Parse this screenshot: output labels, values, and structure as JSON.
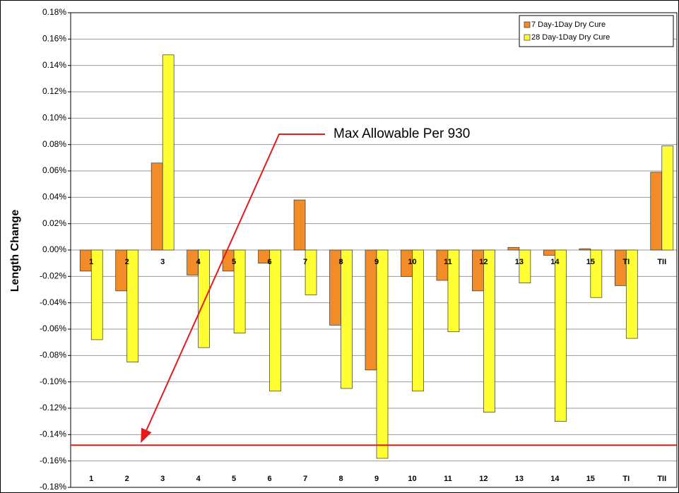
{
  "chart_data": {
    "type": "bar",
    "y_label": "Length Change",
    "categories": [
      "1",
      "2",
      "3",
      "4",
      "5",
      "6",
      "7",
      "8",
      "9",
      "10",
      "11",
      "12",
      "13",
      "14",
      "15",
      "TI",
      "TII"
    ],
    "series": [
      {
        "name": "7 Day-1Day Dry Cure",
        "color": "#f28c28",
        "values": [
          -0.016,
          -0.031,
          0.066,
          -0.019,
          -0.016,
          -0.01,
          0.038,
          -0.057,
          -0.091,
          -0.02,
          -0.023,
          -0.031,
          0.002,
          -0.004,
          0.001,
          -0.027,
          0.059
        ]
      },
      {
        "name": "28 Day-1Day Dry Cure",
        "color": "#ffff33",
        "values": [
          -0.068,
          -0.085,
          0.148,
          -0.074,
          -0.063,
          -0.107,
          -0.034,
          -0.105,
          -0.158,
          -0.107,
          -0.062,
          -0.123,
          -0.025,
          -0.13,
          -0.036,
          -0.067,
          0.079
        ]
      }
    ],
    "ylim": [
      -0.18,
      0.18
    ],
    "yticks": [
      {
        "value": -0.18,
        "label": "-0.18%"
      },
      {
        "value": -0.16,
        "label": "-0.16%"
      },
      {
        "value": -0.14,
        "label": "-0.14%"
      },
      {
        "value": -0.12,
        "label": "-0.12%"
      },
      {
        "value": -0.1,
        "label": "-0.10%"
      },
      {
        "value": -0.08,
        "label": "-0.08%"
      },
      {
        "value": -0.06,
        "label": "-0.06%"
      },
      {
        "value": -0.04,
        "label": "-0.04%"
      },
      {
        "value": -0.02,
        "label": "-0.02%"
      },
      {
        "value": 0,
        "label": "0.00%"
      },
      {
        "value": 0.02,
        "label": "0.02%"
      },
      {
        "value": 0.04,
        "label": "0.04%"
      },
      {
        "value": 0.06,
        "label": "0.06%"
      },
      {
        "value": 0.08,
        "label": "0.08%"
      },
      {
        "value": 0.1,
        "label": "0.10%"
      },
      {
        "value": 0.12,
        "label": "0.12%"
      },
      {
        "value": 0.14,
        "label": "0.14%"
      },
      {
        "value": 0.16,
        "label": "0.16%"
      },
      {
        "value": 0.18,
        "label": "0.18%"
      }
    ],
    "grid": true,
    "legend": "top-right",
    "threshold": {
      "value": -0.148,
      "color": "#e31b1b",
      "label": "Max Allowable Per 930"
    }
  }
}
